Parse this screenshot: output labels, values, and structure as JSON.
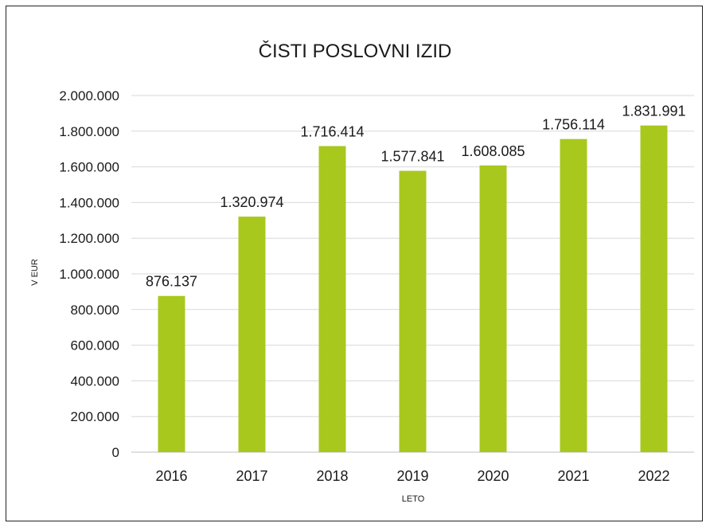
{
  "chart_data": {
    "type": "bar",
    "title": "ČISTI POSLOVNI IZID",
    "xlabel": "LETO",
    "ylabel": "V EUR",
    "categories": [
      "2016",
      "2017",
      "2018",
      "2019",
      "2020",
      "2021",
      "2022"
    ],
    "values": [
      876137,
      1320974,
      1716414,
      1577841,
      1608085,
      1756114,
      1831991
    ],
    "value_labels": [
      "876.137",
      "1.320.974",
      "1.716.414",
      "1.577.841",
      "1.608.085",
      "1.756.114",
      "1.831.991"
    ],
    "ylim": [
      0,
      2000000
    ],
    "y_ticks": [
      0,
      200000,
      400000,
      600000,
      800000,
      1000000,
      1200000,
      1400000,
      1600000,
      1800000,
      2000000
    ],
    "y_tick_labels": [
      "0",
      "200.000",
      "400.000",
      "600.000",
      "800.000",
      "1.000.000",
      "1.200.000",
      "1.400.000",
      "1.600.000",
      "1.800.000",
      "2.000.000"
    ],
    "grid": true,
    "legend": "none",
    "bar_color": "#a8c81e"
  }
}
